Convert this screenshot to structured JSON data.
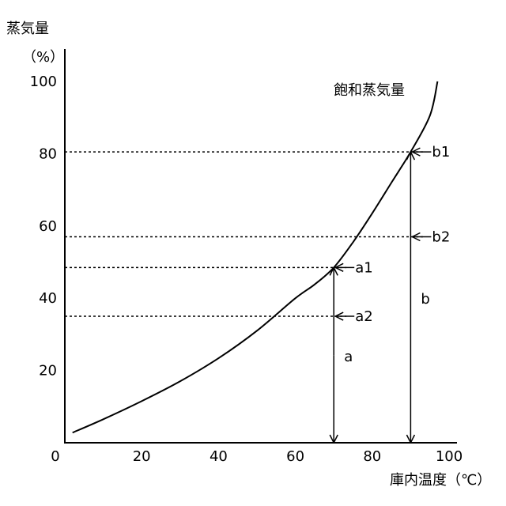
{
  "chart_data": {
    "type": "line",
    "ylabel": "蒸気量",
    "yunit": "（%）",
    "xlabel": "庫内温度（℃）",
    "origin_label": "0",
    "xlim": [
      0,
      100
    ],
    "ylim": [
      0,
      100
    ],
    "x_ticks": [
      "20",
      "40",
      "60",
      "80",
      "100"
    ],
    "y_ticks": [
      "20",
      "40",
      "60",
      "80",
      "100"
    ],
    "series": [
      {
        "name": "飽和蒸気量",
        "x": [
          2,
          10,
          20,
          30,
          40,
          50,
          60,
          65,
          70,
          75,
          80,
          85,
          90,
          95,
          97
        ],
        "y": [
          2.8,
          6.5,
          11.5,
          17,
          23.4,
          31,
          40,
          43.8,
          48.5,
          55.5,
          63.5,
          72,
          80.5,
          90.5,
          100
        ]
      }
    ],
    "markers": [
      {
        "label": "a1",
        "x": 70,
        "y": 48.5
      },
      {
        "label": "a2",
        "x": 70,
        "y": 35
      },
      {
        "label": "b1",
        "x": 90,
        "y": 80.5
      },
      {
        "label": "b2",
        "x": 90,
        "y": 57
      }
    ],
    "spans": [
      {
        "label": "a",
        "x": 70,
        "from": 0,
        "to": 48.5
      },
      {
        "label": "b",
        "x": 90,
        "from": 0,
        "to": 80.5
      }
    ]
  }
}
